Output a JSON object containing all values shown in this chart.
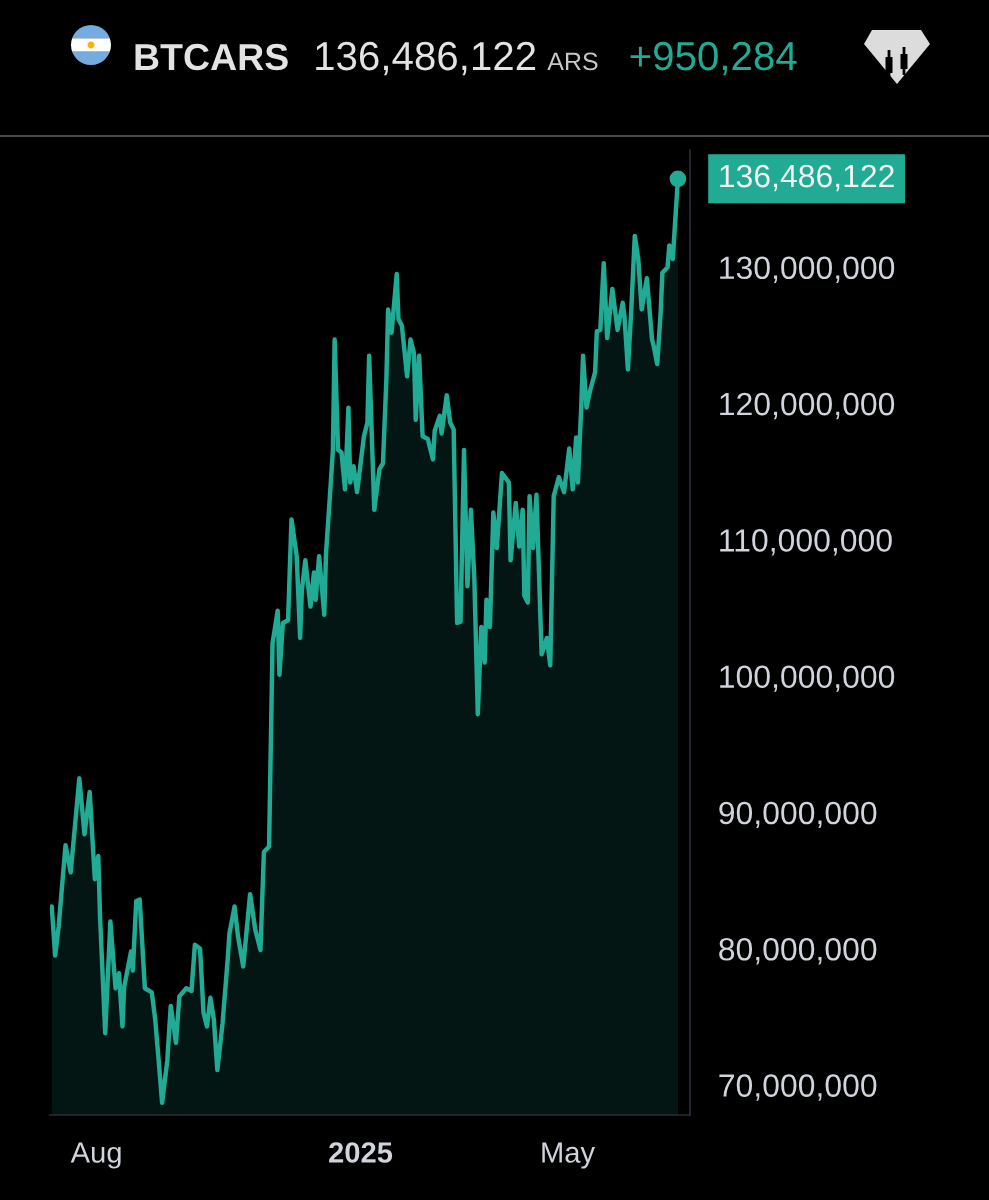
{
  "chart_data": {
    "type": "area",
    "title": "BTCARS",
    "subtitle": "136,486,122",
    "annotations": [
      "ARS",
      "+950,284"
    ],
    "x": [
      "2024-07-06",
      "2024-07-08",
      "2024-07-10",
      "2024-07-14",
      "2024-07-17",
      "2024-07-22",
      "2024-07-25",
      "2024-07-28",
      "2024-07-31",
      "2024-08-02",
      "2024-08-03",
      "2024-08-06",
      "2024-08-09",
      "2024-08-12",
      "2024-08-14",
      "2024-08-16",
      "2024-08-17",
      "2024-08-21",
      "2024-08-22",
      "2024-08-24",
      "2024-08-26",
      "2024-08-29",
      "2024-09-02",
      "2024-09-04",
      "2024-09-06",
      "2024-09-08",
      "2024-09-11",
      "2024-09-13",
      "2024-09-16",
      "2024-09-18",
      "2024-09-22",
      "2024-09-25",
      "2024-09-27",
      "2024-09-30",
      "2024-10-02",
      "2024-10-04",
      "2024-10-06",
      "2024-10-08",
      "2024-10-10",
      "2024-10-13",
      "2024-10-16",
      "2024-10-17",
      "2024-10-20",
      "2024-10-22",
      "2024-10-25",
      "2024-10-29",
      "2024-11-01",
      "2024-11-04",
      "2024-11-06",
      "2024-11-09",
      "2024-11-11",
      "2024-11-14",
      "2024-11-15",
      "2024-11-17",
      "2024-11-20",
      "2024-11-22",
      "2024-11-25",
      "2024-11-27",
      "2024-11-28",
      "2024-11-30",
      "2024-12-03",
      "2024-12-05",
      "2024-12-06",
      "2024-12-08",
      "2024-12-11",
      "2024-12-12",
      "2024-12-14",
      "2024-12-16",
      "2024-12-17",
      "2024-12-19",
      "2024-12-21",
      "2024-12-23",
      "2024-12-25",
      "2024-12-26",
      "2024-12-28",
      "2024-12-30",
      "2025-01-03",
      "2025-01-05",
      "2025-01-06",
      "2025-01-09",
      "2025-01-12",
      "2025-01-14",
      "2025-01-16",
      "2025-01-17",
      "2025-01-19",
      "2025-01-22",
      "2025-01-23",
      "2025-01-25",
      "2025-01-28",
      "2025-01-30",
      "2025-02-01",
      "2025-02-02",
      "2025-02-04",
      "2025-02-06",
      "2025-02-09",
      "2025-02-12",
      "2025-02-13",
      "2025-02-16",
      "2025-02-17",
      "2025-02-20",
      "2025-02-22",
      "2025-02-24",
      "2025-02-26",
      "2025-02-28",
      "2025-03-02",
      "2025-03-04",
      "2025-03-06",
      "2025-03-08",
      "2025-03-10",
      "2025-03-12",
      "2025-03-14",
      "2025-03-15",
      "2025-03-17",
      "2025-03-19",
      "2025-03-21",
      "2025-03-24",
      "2025-03-28",
      "2025-03-29",
      "2025-04-01",
      "2025-04-03",
      "2025-04-05",
      "2025-04-06",
      "2025-04-08",
      "2025-04-09",
      "2025-04-11",
      "2025-04-13",
      "2025-04-16",
      "2025-04-19",
      "2025-04-21",
      "2025-04-23",
      "2025-04-26",
      "2025-04-29",
      "2025-05-02",
      "2025-05-04",
      "2025-05-06",
      "2025-05-07",
      "2025-05-09",
      "2025-05-10",
      "2025-05-12",
      "2025-05-14",
      "2025-05-17",
      "2025-05-18",
      "2025-05-20",
      "2025-05-22",
      "2025-05-24",
      "2025-05-27",
      "2025-05-30",
      "2025-06-02",
      "2025-06-03",
      "2025-06-05",
      "2025-06-07",
      "2025-06-09",
      "2025-06-11",
      "2025-06-13",
      "2025-06-16",
      "2025-06-19",
      "2025-06-20",
      "2025-06-22",
      "2025-06-24",
      "2025-06-25",
      "2025-06-28",
      "2025-06-29",
      "2025-07-01",
      "2025-07-04"
    ],
    "series": [
      {
        "color": "#22ab94",
        "values": [
          83100000,
          79500000,
          81600000,
          87600000,
          85600000,
          92500000,
          88400000,
          91500000,
          85100000,
          86800000,
          82400000,
          73800000,
          82000000,
          77100000,
          78200000,
          74300000,
          77200000,
          79800000,
          78400000,
          83500000,
          83600000,
          77100000,
          76800000,
          74800000,
          71800000,
          68700000,
          71800000,
          75800000,
          73100000,
          76500000,
          77100000,
          76900000,
          80300000,
          80000000,
          75300000,
          74300000,
          76400000,
          74800000,
          71100000,
          74500000,
          79200000,
          81100000,
          83100000,
          80900000,
          78700000,
          84000000,
          81400000,
          79900000,
          87100000,
          87500000,
          102400000,
          104800000,
          100100000,
          103900000,
          104100000,
          111500000,
          108800000,
          102800000,
          106300000,
          108500000,
          105100000,
          107600000,
          105600000,
          108800000,
          104500000,
          109000000,
          112700000,
          116600000,
          124700000,
          116600000,
          116400000,
          113700000,
          119700000,
          114200000,
          115400000,
          113500000,
          117600000,
          118600000,
          123500000,
          112200000,
          115200000,
          115600000,
          121800000,
          126900000,
          125200000,
          129500000,
          126200000,
          125700000,
          122000000,
          124700000,
          123700000,
          118800000,
          123500000,
          117600000,
          117400000,
          115900000,
          118000000,
          119100000,
          117800000,
          120600000,
          118600000,
          118100000,
          103900000,
          104000000,
          116600000,
          106600000,
          112200000,
          107100000,
          97200000,
          103600000,
          101000000,
          105600000,
          103600000,
          112000000,
          109400000,
          114900000,
          114200000,
          108500000,
          112700000,
          109500000,
          112200000,
          105900000,
          105400000,
          113200000,
          109400000,
          113300000,
          101600000,
          102800000,
          100800000,
          113200000,
          114600000,
          113500000,
          116700000,
          113700000,
          117500000,
          114200000,
          119900000,
          123500000,
          119700000,
          120900000,
          122300000,
          125300000,
          125400000,
          130300000,
          124800000,
          128400000,
          125400000,
          127400000,
          126400000,
          122500000,
          127000000,
          132300000,
          130600000,
          126900000,
          129200000,
          124700000,
          124200000,
          122900000,
          126700000,
          129600000,
          130000000,
          131600000,
          130600000,
          136486122
        ],
        "value_labels": [
          null,
          null,
          null,
          null,
          null,
          null,
          null,
          null,
          null,
          null,
          null,
          null,
          null,
          null,
          null,
          null,
          null,
          null,
          null,
          null,
          null,
          null,
          null,
          null,
          null,
          null,
          null,
          null,
          null,
          null,
          null,
          null,
          null,
          null,
          null,
          null,
          null,
          null,
          null,
          null,
          null,
          null,
          null,
          null,
          null,
          null,
          null,
          null,
          null,
          null,
          null,
          null,
          null,
          null,
          null,
          null,
          null,
          null,
          null,
          null,
          null,
          null,
          null,
          null,
          null,
          null,
          null,
          null,
          null,
          null,
          null,
          null,
          null,
          null,
          null,
          null,
          null,
          null,
          null,
          null,
          null,
          null,
          null,
          null,
          null,
          null,
          null,
          null,
          null,
          null,
          null,
          null,
          null,
          null,
          null,
          null,
          null,
          null,
          null,
          null,
          null,
          null,
          null,
          null,
          null,
          null,
          null,
          null,
          null,
          null,
          null,
          null,
          null,
          null,
          null,
          null,
          null,
          null,
          null,
          null,
          null,
          null,
          null,
          null,
          null,
          null,
          null,
          null,
          null,
          null,
          null,
          null,
          null,
          null,
          null,
          null,
          null,
          null,
          null,
          null,
          null,
          null,
          null,
          null,
          null,
          null,
          null,
          null,
          null,
          null,
          null,
          null,
          null,
          null,
          null,
          null,
          null,
          null,
          null,
          null,
          null,
          null,
          null,
          "136,486,122"
        ]
      }
    ],
    "xlim": [
      "2024-07-05",
      "2025-07-11"
    ],
    "ylim": [
      67800000,
      138600000
    ],
    "xticks": [
      {
        "value": "2024-08-01",
        "label": "Aug"
      },
      {
        "value": "2025-01-01",
        "label": "2025"
      },
      {
        "value": "2025-05-01",
        "label": "May"
      }
    ],
    "yticks": [
      {
        "value": 70000000,
        "label": "70,000,000"
      },
      {
        "value": 80000000,
        "label": "80,000,000"
      },
      {
        "value": 90000000,
        "label": "90,000,000"
      },
      {
        "value": 100000000,
        "label": "100,000,000"
      },
      {
        "value": 110000000,
        "label": "110,000,000"
      },
      {
        "value": 120000000,
        "label": "120,000,000"
      },
      {
        "value": 130000000,
        "label": "130,000,000"
      }
    ]
  }
}
